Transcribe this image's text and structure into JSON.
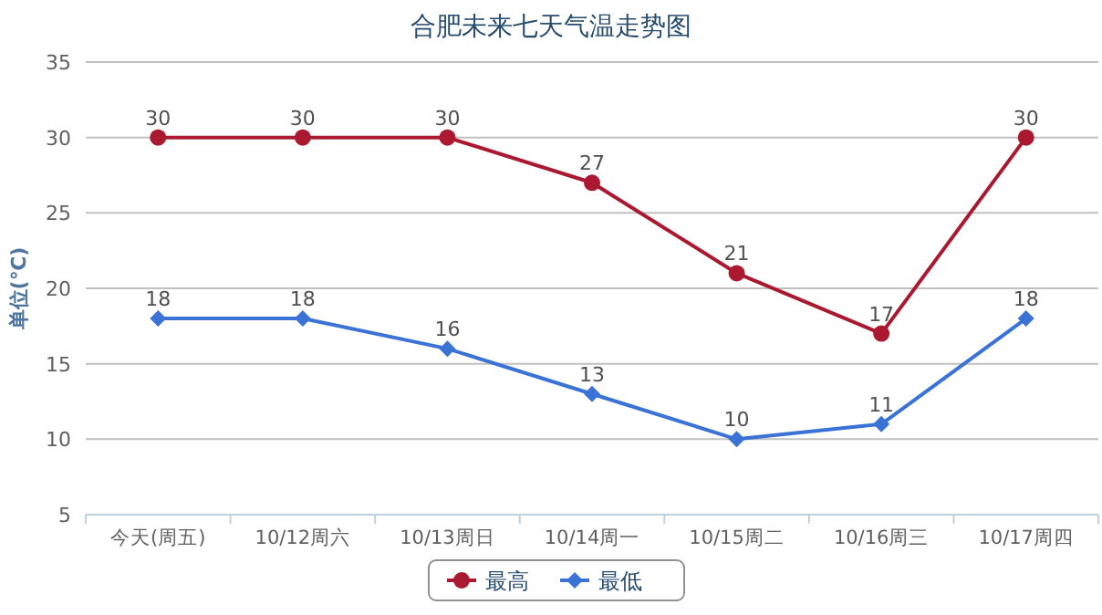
{
  "chart_data": {
    "type": "line",
    "title": "合肥未来七天气温走势图",
    "ylabel": "单位(℃)",
    "categories": [
      "今天(周五)",
      "10/12周六",
      "10/13周日",
      "10/14周一",
      "10/15周二",
      "10/16周三",
      "10/17周四"
    ],
    "series": [
      {
        "name": "最高",
        "color": "#aa1930",
        "marker": "circle",
        "values": [
          30,
          30,
          30,
          27,
          21,
          17,
          30
        ]
      },
      {
        "name": "最低",
        "color": "#3a72d6",
        "marker": "diamond",
        "values": [
          18,
          18,
          16,
          13,
          10,
          11,
          18
        ]
      }
    ],
    "ylim": [
      5,
      35
    ],
    "yticks": [
      5,
      10,
      15,
      20,
      25,
      30,
      35
    ],
    "grid": "y",
    "data_labels": true,
    "legend": "bottom"
  }
}
